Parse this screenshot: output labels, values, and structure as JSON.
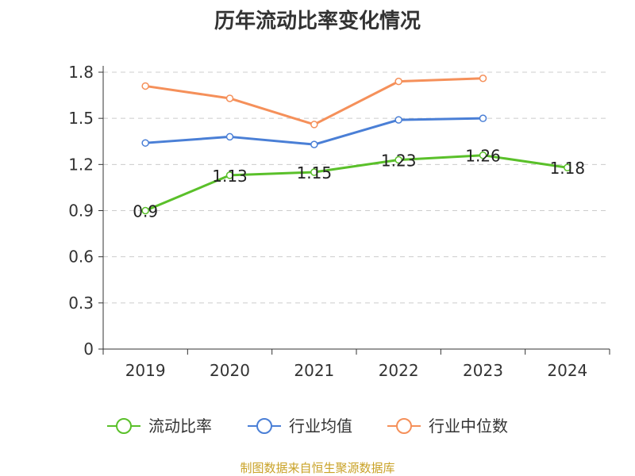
{
  "chart_data": {
    "type": "line",
    "title": "历年流动比率变化情况",
    "categories": [
      "2019",
      "2020",
      "2021",
      "2022",
      "2023",
      "2024"
    ],
    "ylim": [
      0,
      1.8
    ],
    "yticks": [
      "0",
      "0.3",
      "0.6",
      "0.9",
      "1.2",
      "1.5",
      "1.8"
    ],
    "grid": true,
    "legend_position": "bottom",
    "series": [
      {
        "name": "流动比率",
        "color": "#5ac02a",
        "values": [
          0.9,
          1.13,
          1.15,
          1.23,
          1.26,
          1.18
        ],
        "labels": [
          "0.9",
          "1.13",
          "1.15",
          "1.23",
          "1.26",
          "1.18"
        ]
      },
      {
        "name": "行业均值",
        "color": "#4a7fd6",
        "values": [
          1.34,
          1.38,
          1.33,
          1.49,
          1.5,
          null
        ]
      },
      {
        "name": "行业中位数",
        "color": "#f5905a",
        "values": [
          1.71,
          1.63,
          1.46,
          1.74,
          1.76,
          null
        ]
      }
    ]
  },
  "source_note": "制图数据来自恒生聚源数据库"
}
